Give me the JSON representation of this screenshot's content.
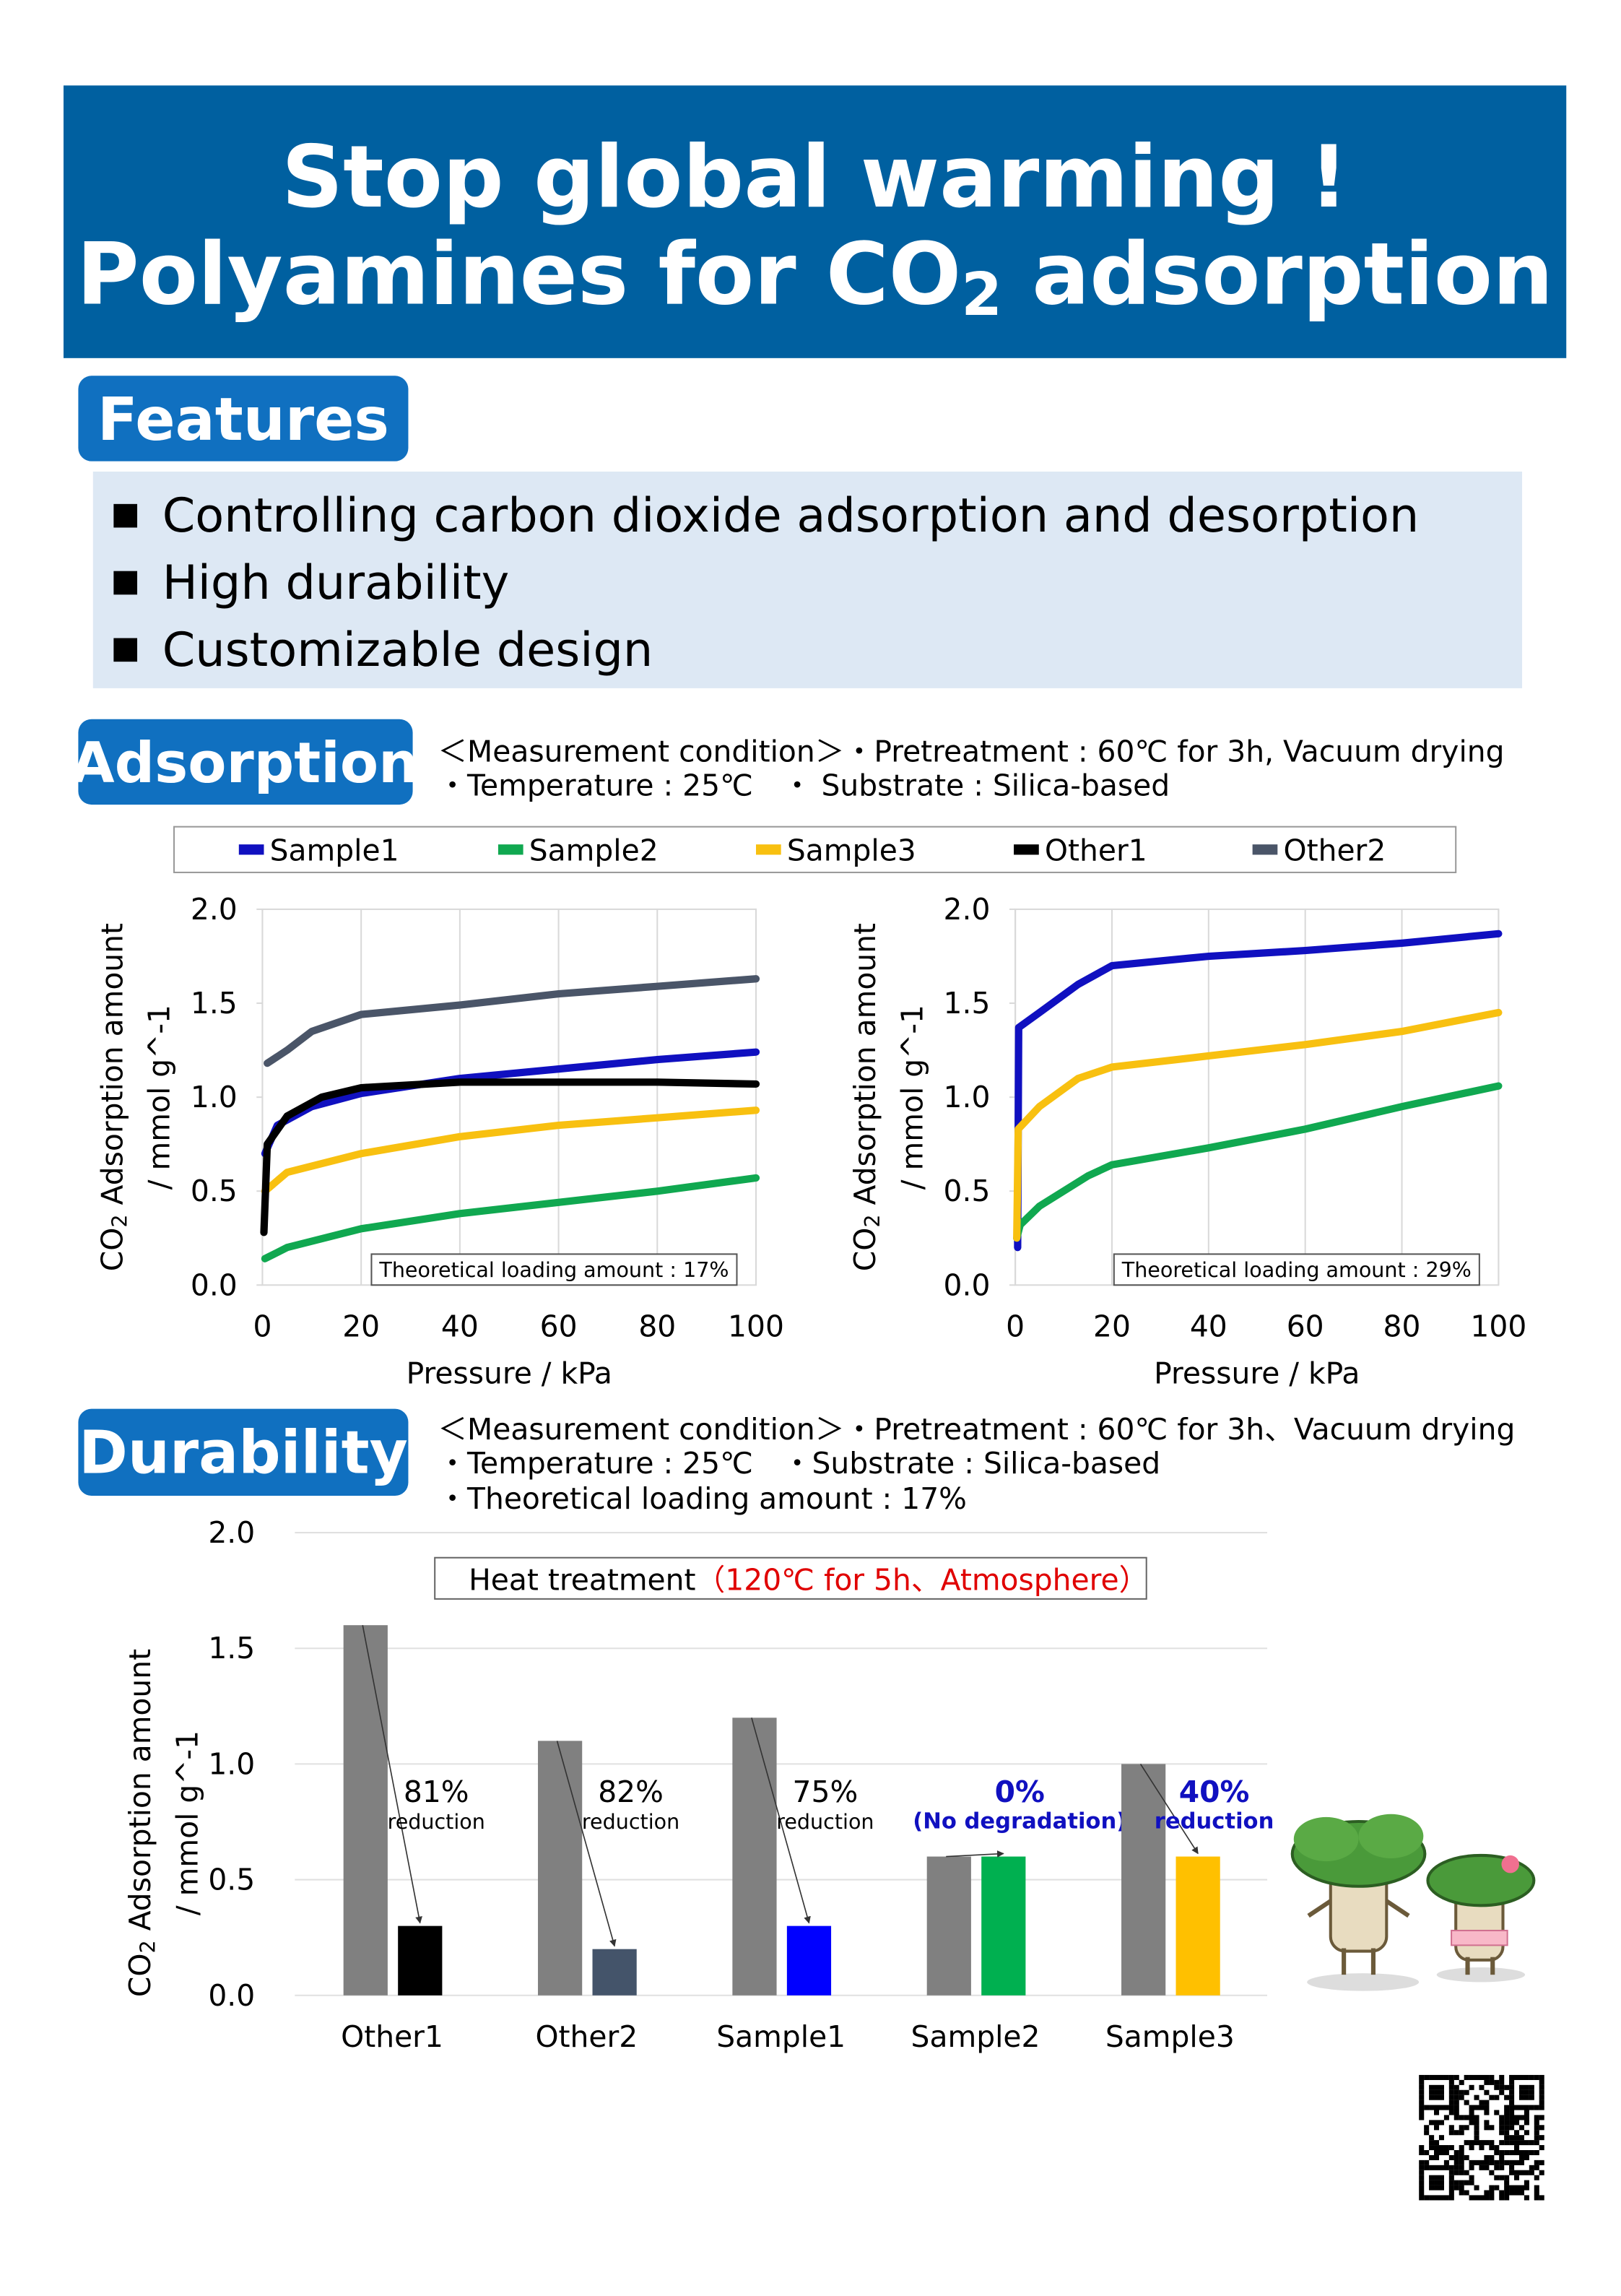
{
  "header": {
    "title_line1": "Stop global warming !",
    "title_line2": {
      "before": "Polyamines for CO",
      "sub": "2",
      "after": " adsorption"
    }
  },
  "features": {
    "heading": "Features",
    "items": [
      "Controlling carbon dioxide adsorption and desorption",
      "High durability",
      "Customizable design"
    ]
  },
  "adsorption": {
    "heading": "Adsorption",
    "conditions": [
      "＜Measurement condition＞・Pretreatment : 60℃ for 3h, Vacuum drying",
      "・Temperature : 25℃　・ Substrate :  Silica-based"
    ]
  },
  "durability": {
    "heading": "Durability",
    "conditions": [
      "＜Measurement condition＞・Pretreatment : 60℃ for 3h、Vacuum drying",
      "・Temperature : 25℃　・Substrate : Silica-based",
      "・Theoretical loading amount : 17%"
    ]
  },
  "chart_data": [
    {
      "type": "line",
      "legend": "top",
      "grid": "x",
      "xlabel": "Pressure / kPa",
      "ylabel": {
        "before": "CO",
        "sub": "2",
        "after": " Adsorption amount",
        "line2": "/ mmol g^-1"
      },
      "xlim": [
        0,
        100
      ],
      "xticks": [
        0,
        20,
        40,
        60,
        80,
        100
      ],
      "ylim": [
        0,
        2
      ],
      "yticks": [
        {
          "value": 0,
          "label": "0.0"
        },
        0.5,
        {
          "value": 1,
          "label": "1.0"
        },
        1.5,
        {
          "value": 2,
          "label": "2.0"
        }
      ],
      "annotation": "Theoretical loading amount : 17%",
      "series": [
        {
          "name": "Sample1",
          "color": "#1010c0",
          "x": [
            0.5,
            3,
            10,
            20,
            40,
            60,
            80,
            100
          ],
          "values": [
            0.7,
            0.85,
            0.95,
            1.02,
            1.1,
            1.15,
            1.2,
            1.24
          ]
        },
        {
          "name": "Sample2",
          "color": "#10a850",
          "x": [
            0.5,
            5,
            20,
            40,
            60,
            80,
            100
          ],
          "values": [
            0.14,
            0.2,
            0.3,
            0.38,
            0.44,
            0.5,
            0.57
          ]
        },
        {
          "name": "Sample3",
          "color": "#f8c010",
          "x": [
            0.5,
            5,
            20,
            40,
            60,
            80,
            100
          ],
          "values": [
            0.5,
            0.6,
            0.7,
            0.79,
            0.85,
            0.89,
            0.93
          ]
        },
        {
          "name": "Other1",
          "color": "#000000",
          "x": [
            0.3,
            1,
            5,
            12,
            20,
            40,
            60,
            80,
            100
          ],
          "values": [
            0.28,
            0.75,
            0.9,
            1.0,
            1.05,
            1.08,
            1.08,
            1.08,
            1.07
          ]
        },
        {
          "name": "Other2",
          "color": "#4a5568",
          "x": [
            1,
            5,
            10,
            20,
            40,
            60,
            80,
            100
          ],
          "values": [
            1.18,
            1.25,
            1.35,
            1.44,
            1.49,
            1.55,
            1.59,
            1.63
          ]
        }
      ]
    },
    {
      "type": "line",
      "grid": "x",
      "xlabel": "Pressure / kPa",
      "ylabel": {
        "before": "CO",
        "sub": "2",
        "after": " Adsorption amount",
        "line2": "/ mmol g^-1"
      },
      "xlim": [
        0,
        100
      ],
      "xticks": [
        0,
        20,
        40,
        60,
        80,
        100
      ],
      "ylim": [
        0,
        2
      ],
      "yticks": [
        {
          "value": 0,
          "label": "0.0"
        },
        0.5,
        {
          "value": 1,
          "label": "1.0"
        },
        1.5,
        {
          "value": 2,
          "label": "2.0"
        }
      ],
      "annotation": "Theoretical loading amount : 29%",
      "series": [
        {
          "name": "Sample1",
          "color": "#1010c0",
          "x": [
            0.5,
            0.7,
            5,
            13,
            20,
            40,
            60,
            80,
            100
          ],
          "values": [
            0.2,
            1.37,
            1.45,
            1.6,
            1.7,
            1.75,
            1.78,
            1.82,
            1.87
          ]
        },
        {
          "name": "Sample2",
          "color": "#10a850",
          "x": [
            0.3,
            1,
            5,
            15,
            20,
            40,
            60,
            80,
            100
          ],
          "values": [
            0.25,
            0.32,
            0.42,
            0.58,
            0.64,
            0.73,
            0.83,
            0.95,
            1.06
          ]
        },
        {
          "name": "Sample3",
          "color": "#f8c010",
          "x": [
            0.3,
            0.6,
            5,
            13,
            20,
            40,
            60,
            80,
            100
          ],
          "values": [
            0.25,
            0.83,
            0.95,
            1.1,
            1.16,
            1.22,
            1.28,
            1.35,
            1.45
          ]
        }
      ]
    },
    {
      "type": "bar",
      "grid": true,
      "ylabel": {
        "before": "CO",
        "sub": "2",
        "after": " Adsorption amount",
        "line2": "/ mmol g^-1"
      },
      "categories": [
        "Other1",
        "Other2",
        "Sample1",
        "Sample2",
        "Sample3"
      ],
      "ylim": [
        0,
        2
      ],
      "yticks": [
        {
          "value": 0,
          "label": "0.0"
        },
        0.5,
        {
          "value": 1,
          "label": "1.0"
        },
        1.5,
        {
          "value": 2,
          "label": "2.0"
        }
      ],
      "box": {
        "label": "Heat treatment",
        "detail": "（120℃ for 5h、Atmosphere）",
        "detail_color": "#e00000"
      },
      "series": [
        {
          "color": "#808080",
          "values": [
            1.6,
            1.1,
            1.2,
            0.6,
            1.0
          ]
        },
        {
          "colors": [
            "#000000",
            "#44546a",
            "#0000ff",
            "#00b050",
            "#ffc000"
          ],
          "values": [
            0.3,
            0.2,
            0.3,
            0.6,
            0.6
          ]
        }
      ],
      "annotations": [
        {
          "text": "81%",
          "note": "reduction",
          "color": "#000000"
        },
        {
          "text": "82%",
          "note": "reduction",
          "color": "#000000"
        },
        {
          "text": "75%",
          "note": "reduction",
          "color": "#000000"
        },
        {
          "text": "0%",
          "note": "(No degradation)",
          "color": "#1010c0"
        },
        {
          "text": "40%",
          "note": "reduction",
          "color": "#1010c0"
        }
      ]
    }
  ]
}
